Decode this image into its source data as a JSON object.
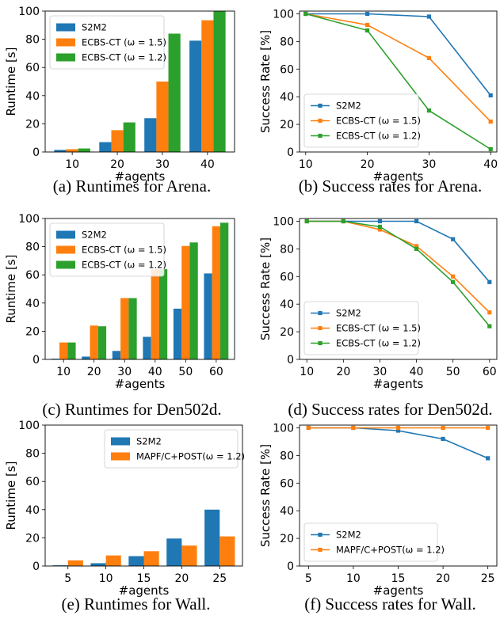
{
  "colors": {
    "blue": "#1f77b4",
    "orange": "#ff7f0e",
    "green": "#2ca02c"
  },
  "chart_data": [
    {
      "type": "bar",
      "caption": "(a) Runtimes for Arena.",
      "xlabel": "#agents",
      "ylabel": "Runtime [s]",
      "categories": [
        "10",
        "20",
        "30",
        "40"
      ],
      "ylim": [
        0,
        100
      ],
      "yticks": [
        0,
        20,
        40,
        60,
        80,
        100
      ],
      "legend_loc": "upper-left",
      "series": [
        {
          "name": "S2M2",
          "display": "S2M2",
          "color": "#1f77b4",
          "values": [
            1.5,
            7,
            24,
            79
          ]
        },
        {
          "name": "ECBS-CT (ω = 1.5)",
          "display": "ECBS-CT (ω = 1.5)",
          "color": "#ff7f0e",
          "values": [
            2,
            15.5,
            50,
            93.5
          ]
        },
        {
          "name": "ECBS-CT (ω = 1.2)",
          "display": "ECBS-CT (ω = 1.2)",
          "color": "#2ca02c",
          "values": [
            2.5,
            21,
            84,
            100
          ]
        }
      ]
    },
    {
      "type": "line",
      "caption": "(b) Success rates for Arena.",
      "xlabel": "#agents",
      "ylabel": "Success Rate [%]",
      "x": [
        10,
        20,
        30,
        40
      ],
      "xlim": [
        9,
        41
      ],
      "xticks": [
        10,
        20,
        30,
        40
      ],
      "ylim": [
        0,
        102
      ],
      "yticks": [
        0,
        20,
        40,
        60,
        80,
        100
      ],
      "legend_loc": "lower-left",
      "series": [
        {
          "name": "S2M2",
          "display": "S2M2",
          "color": "#1f77b4",
          "values": [
            100,
            100,
            98,
            41
          ]
        },
        {
          "name": "ECBS-CT (ω = 1.5)",
          "display": "ECBS-CT (ω = 1.5)",
          "color": "#ff7f0e",
          "values": [
            100,
            92,
            68,
            22
          ]
        },
        {
          "name": "ECBS-CT (ω = 1.2)",
          "display": "ECBS-CT (ω = 1.2)",
          "color": "#2ca02c",
          "values": [
            100,
            88,
            30,
            2
          ]
        }
      ]
    },
    {
      "type": "bar",
      "caption": "(c) Runtimes for Den502d.",
      "xlabel": "#agents",
      "ylabel": "Runtime [s]",
      "categories": [
        "10",
        "20",
        "30",
        "40",
        "50",
        "60"
      ],
      "ylim": [
        0,
        100
      ],
      "yticks": [
        0,
        20,
        40,
        60,
        80,
        100
      ],
      "legend_loc": "upper-left",
      "series": [
        {
          "name": "S2M2",
          "display": "S2M2",
          "color": "#1f77b4",
          "values": [
            0.5,
            2,
            6,
            16,
            36,
            61
          ]
        },
        {
          "name": "ECBS-CT (ω = 1.5)",
          "display": "ECBS-CT (ω = 1.5)",
          "color": "#ff7f0e",
          "values": [
            12,
            24,
            43.5,
            64,
            80.5,
            94.5
          ]
        },
        {
          "name": "ECBS-CT (ω = 1.2)",
          "display": "ECBS-CT (ω = 1.2)",
          "color": "#2ca02c",
          "values": [
            12,
            23.5,
            43.5,
            64,
            83,
            97
          ]
        }
      ]
    },
    {
      "type": "line",
      "caption": "(d) Success rates for Den502d.",
      "xlabel": "#agents",
      "ylabel": "Success Rate [%]",
      "x": [
        10,
        20,
        30,
        40,
        50,
        60
      ],
      "xlim": [
        8,
        62
      ],
      "xticks": [
        10,
        20,
        30,
        40,
        50,
        60
      ],
      "ylim": [
        0,
        102
      ],
      "yticks": [
        0,
        20,
        40,
        60,
        80,
        100
      ],
      "legend_loc": "lower-left",
      "series": [
        {
          "name": "S2M2",
          "display": "S2M2",
          "color": "#1f77b4",
          "values": [
            100,
            100,
            100,
            100,
            87,
            56
          ]
        },
        {
          "name": "ECBS-CT (ω = 1.5)",
          "display": "ECBS-CT (ω = 1.5)",
          "color": "#ff7f0e",
          "values": [
            100,
            100,
            94,
            82,
            60,
            34
          ]
        },
        {
          "name": "ECBS-CT (ω = 1.2)",
          "display": "ECBS-CT (ω = 1.2)",
          "color": "#2ca02c",
          "values": [
            100,
            100,
            96,
            80,
            56,
            24
          ]
        }
      ]
    },
    {
      "type": "bar",
      "caption": "(e) Runtimes for Wall.",
      "xlabel": "#agents",
      "ylabel": "Runtime [s]",
      "categories": [
        "5",
        "10",
        "15",
        "20",
        "25"
      ],
      "ylim": [
        0,
        100
      ],
      "yticks": [
        0,
        20,
        40,
        60,
        80,
        100
      ],
      "legend_loc": "upper-right",
      "series": [
        {
          "name": "S2M2",
          "display": "S2M2",
          "color": "#1f77b4",
          "values": [
            0.5,
            2,
            7,
            19.5,
            40
          ]
        },
        {
          "name": "MAPF/C+POST(ω = 1.2)",
          "display": "MAPF/C+POST(ω = 1.2)",
          "color": "#ff7f0e",
          "values": [
            4,
            7.5,
            10.5,
            14.5,
            21
          ]
        }
      ]
    },
    {
      "type": "line",
      "caption": "(f) Success rates for Wall.",
      "xlabel": "#agents",
      "ylabel": "Success Rate [%]",
      "x": [
        5,
        10,
        15,
        20,
        25
      ],
      "xlim": [
        4,
        26
      ],
      "xticks": [
        5,
        10,
        15,
        20,
        25
      ],
      "ylim": [
        0,
        102
      ],
      "yticks": [
        0,
        20,
        40,
        60,
        80,
        100
      ],
      "legend_loc": "lower-left",
      "series": [
        {
          "name": "S2M2",
          "display": "S2M2",
          "color": "#1f77b4",
          "values": [
            100,
            100,
            98,
            92,
            78
          ]
        },
        {
          "name": "MAPF/C+POST(ω = 1.2)",
          "display": "MAPF/C+POST(ω = 1.2)",
          "color": "#ff7f0e",
          "values": [
            100,
            100,
            100,
            100,
            100
          ]
        }
      ]
    }
  ]
}
